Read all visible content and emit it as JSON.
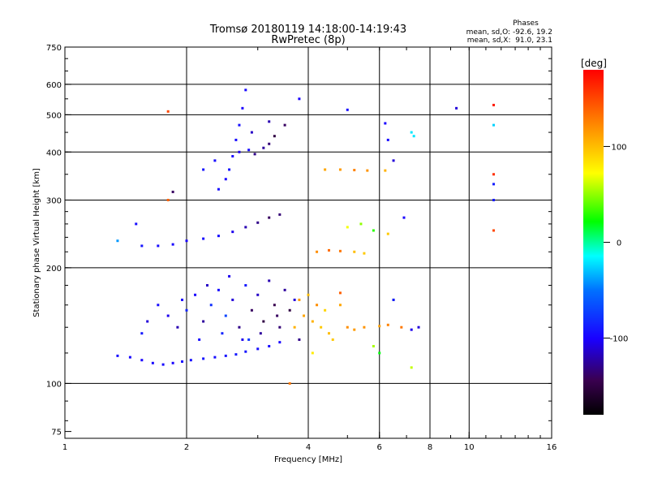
{
  "header": {
    "title": "Tromsø 20180119 14:18:00-14:19:43",
    "subtitle": "RwPretec (8p)"
  },
  "stats": {
    "heading": "Phases",
    "line1": "mean, sd,O: -92.6, 19.2",
    "line2": "mean, sd,X:  91.0, 23.1"
  },
  "colorbar": {
    "label": "[deg]",
    "ticks": [
      {
        "value": 100,
        "label": "100"
      },
      {
        "value": 0,
        "label": "0"
      },
      {
        "value": -100,
        "label": "-100"
      }
    ],
    "range": [
      -180,
      180
    ]
  },
  "chart_data": {
    "type": "scatter",
    "title": "Tromsø 20180119 14:18:00-14:19:43",
    "subtitle": "RwPretec (8p)",
    "xlabel": "Frequency [MHz]",
    "ylabel": "Stationary phase Virtual Height [km]",
    "x_scale": "log",
    "y_scale": "log",
    "xlim": [
      1,
      16
    ],
    "ylim": [
      72,
      750
    ],
    "x_ticks": [
      {
        "value": 1,
        "label": "1"
      },
      {
        "value": 2,
        "label": "2"
      },
      {
        "value": 4,
        "label": "4"
      },
      {
        "value": 6,
        "label": "6"
      },
      {
        "value": 8,
        "label": "8"
      },
      {
        "value": 10,
        "label": "10"
      },
      {
        "value": 16,
        "label": "16"
      }
    ],
    "x_grid": [
      2,
      4,
      6,
      8,
      10
    ],
    "y_ticks": [
      {
        "value": 75,
        "label": "75"
      },
      {
        "value": 100,
        "label": "100"
      },
      {
        "value": 200,
        "label": "200"
      },
      {
        "value": 300,
        "label": "300"
      },
      {
        "value": 400,
        "label": "400"
      },
      {
        "value": 500,
        "label": "500"
      },
      {
        "value": 600,
        "label": "600"
      },
      {
        "value": 750,
        "label": "750"
      }
    ],
    "y_grid": [
      100,
      200,
      300,
      400,
      500,
      600
    ],
    "grid": true,
    "series": [
      {
        "points": [
          [
            1.35,
            118,
            -95
          ],
          [
            1.45,
            117,
            -98
          ],
          [
            1.55,
            115,
            -100
          ],
          [
            1.65,
            113,
            -97
          ],
          [
            1.75,
            112,
            -96
          ],
          [
            1.85,
            113,
            -99
          ],
          [
            1.95,
            114,
            -95
          ],
          [
            2.05,
            115,
            -94
          ],
          [
            2.2,
            116,
            -92
          ],
          [
            2.35,
            117,
            -95
          ],
          [
            2.5,
            118,
            -93
          ],
          [
            2.65,
            119,
            -90
          ],
          [
            2.8,
            121,
            -92
          ],
          [
            3.0,
            123,
            -95
          ],
          [
            3.2,
            125,
            -97
          ],
          [
            3.4,
            128,
            -99
          ],
          [
            1.55,
            135,
            -90
          ],
          [
            1.6,
            145,
            -110
          ],
          [
            1.7,
            160,
            -95
          ],
          [
            1.8,
            150,
            -105
          ],
          [
            1.9,
            140,
            -120
          ],
          [
            2.0,
            155,
            -85
          ],
          [
            2.1,
            170,
            -100
          ],
          [
            2.2,
            145,
            -125
          ],
          [
            2.3,
            160,
            -80
          ],
          [
            2.4,
            175,
            -95
          ],
          [
            2.5,
            150,
            -70
          ],
          [
            2.6,
            165,
            -110
          ],
          [
            2.7,
            140,
            -130
          ],
          [
            2.8,
            180,
            -90
          ],
          [
            2.9,
            155,
            -140
          ],
          [
            3.0,
            170,
            -115
          ],
          [
            3.1,
            145,
            -150
          ],
          [
            3.2,
            185,
            -120
          ],
          [
            3.3,
            160,
            -145
          ],
          [
            3.4,
            140,
            -135
          ],
          [
            3.5,
            175,
            -125
          ],
          [
            3.6,
            155,
            -150
          ],
          [
            3.7,
            165,
            -110
          ],
          [
            3.8,
            130,
            -130
          ],
          [
            2.15,
            130,
            -95
          ],
          [
            2.45,
            135,
            -85
          ],
          [
            2.75,
            130,
            -105
          ],
          [
            3.05,
            135,
            -125
          ],
          [
            3.35,
            150,
            -140
          ],
          [
            1.95,
            165,
            -100
          ],
          [
            2.25,
            180,
            -115
          ],
          [
            2.55,
            190,
            -105
          ],
          [
            2.85,
            130,
            -75
          ],
          [
            1.55,
            228,
            -92
          ],
          [
            1.7,
            228,
            -95
          ],
          [
            1.85,
            230,
            -98
          ],
          [
            2.0,
            235,
            -100
          ],
          [
            2.2,
            238,
            -96
          ],
          [
            2.4,
            242,
            -94
          ],
          [
            2.6,
            248,
            -105
          ],
          [
            2.8,
            255,
            -120
          ],
          [
            3.0,
            262,
            -130
          ],
          [
            3.2,
            270,
            -140
          ],
          [
            3.4,
            275,
            -135
          ],
          [
            2.4,
            320,
            -95
          ],
          [
            2.5,
            340,
            -100
          ],
          [
            2.55,
            360,
            -92
          ],
          [
            2.6,
            390,
            -98
          ],
          [
            2.65,
            430,
            -96
          ],
          [
            2.7,
            470,
            -94
          ],
          [
            2.75,
            520,
            -100
          ],
          [
            2.8,
            580,
            -97
          ],
          [
            2.7,
            400,
            -105
          ],
          [
            2.85,
            405,
            -95
          ],
          [
            2.95,
            395,
            -130
          ],
          [
            3.1,
            410,
            -125
          ],
          [
            3.3,
            440,
            -150
          ],
          [
            3.5,
            470,
            -140
          ],
          [
            2.2,
            360,
            -92
          ],
          [
            2.35,
            380,
            -96
          ],
          [
            2.9,
            450,
            -115
          ],
          [
            3.2,
            420,
            -135
          ]
        ]
      },
      {
        "points": [
          [
            3.9,
            150,
            110
          ],
          [
            4.1,
            145,
            105
          ],
          [
            4.3,
            140,
            95
          ],
          [
            4.5,
            135,
            100
          ],
          [
            3.8,
            165,
            115
          ],
          [
            4.0,
            170,
            100
          ],
          [
            4.2,
            160,
            120
          ],
          [
            4.4,
            155,
            90
          ],
          [
            3.7,
            140,
            105
          ],
          [
            4.6,
            130,
            95
          ],
          [
            4.8,
            160,
            110
          ],
          [
            5.0,
            140,
            120
          ],
          [
            5.2,
            138,
            115
          ],
          [
            5.5,
            140,
            118
          ],
          [
            6.0,
            141,
            112
          ],
          [
            6.3,
            142,
            125
          ],
          [
            6.8,
            140,
            130
          ],
          [
            4.8,
            172,
            140
          ],
          [
            4.2,
            220,
            120
          ],
          [
            4.5,
            222,
            135
          ],
          [
            4.8,
            221,
            130
          ],
          [
            5.2,
            220,
            100
          ],
          [
            5.5,
            218,
            95
          ],
          [
            4.4,
            360,
            110
          ],
          [
            4.8,
            360,
            115
          ],
          [
            5.2,
            359,
            125
          ],
          [
            5.6,
            358,
            118
          ],
          [
            6.2,
            358,
            105
          ],
          [
            5.0,
            255,
            70
          ],
          [
            5.4,
            260,
            50
          ],
          [
            5.8,
            250,
            30
          ],
          [
            6.3,
            245,
            95
          ],
          [
            3.6,
            100,
            130
          ],
          [
            4.1,
            120,
            80
          ],
          [
            5.8,
            125,
            55
          ],
          [
            6.0,
            120,
            20
          ],
          [
            6.5,
            165,
            10
          ],
          [
            7.2,
            110,
            60
          ],
          [
            1.8,
            510,
            150
          ],
          [
            1.8,
            300,
            140
          ]
        ]
      },
      {
        "points": [
          [
            7.5,
            140,
            -110
          ],
          [
            7.2,
            138,
            -105
          ],
          [
            6.5,
            165,
            -95
          ],
          [
            6.2,
            475,
            -100
          ],
          [
            6.3,
            430,
            -95
          ],
          [
            6.5,
            380,
            -110
          ],
          [
            7.3,
            440,
            -20
          ],
          [
            11.5,
            300,
            -90
          ],
          [
            11.5,
            330,
            -88
          ],
          [
            11.5,
            470,
            -25
          ],
          [
            11.5,
            530,
            170
          ],
          [
            11.5,
            350,
            160
          ],
          [
            11.5,
            250,
            150
          ],
          [
            9.3,
            520,
            -110
          ],
          [
            5.0,
            515,
            -95
          ],
          [
            3.8,
            550,
            -100
          ],
          [
            3.2,
            480,
            -120
          ],
          [
            1.35,
            235,
            -40
          ],
          [
            1.5,
            260,
            -95
          ],
          [
            1.85,
            315,
            -140
          ],
          [
            7.2,
            450,
            -20
          ],
          [
            6.9,
            270,
            -100
          ]
        ]
      }
    ]
  }
}
